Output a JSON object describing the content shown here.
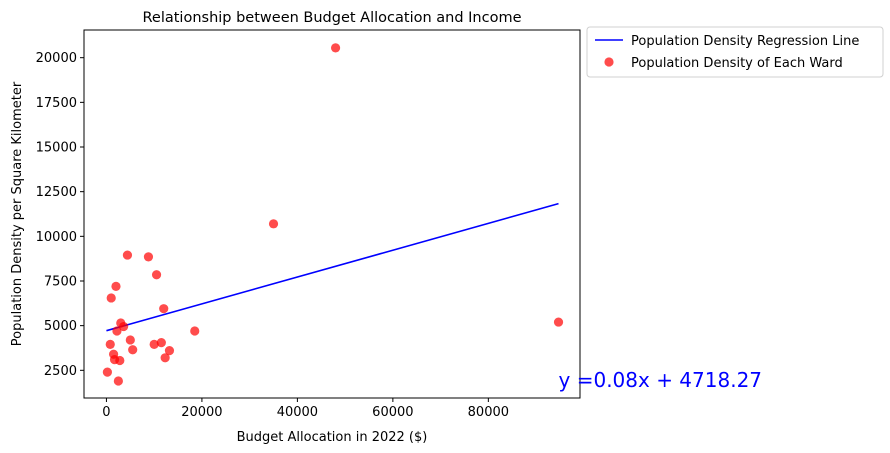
{
  "chart_data": {
    "type": "scatter",
    "title": "Relationship between Budget Allocation and Income",
    "xlabel": "Budget Allocation in 2022 ($)",
    "ylabel": "Population Density per Square Kilometer",
    "xlim": [
      -4700,
      99200
    ],
    "ylim": [
      950,
      21550
    ],
    "xticks": [
      0,
      20000,
      40000,
      60000,
      80000
    ],
    "yticks": [
      2500,
      5000,
      7500,
      10000,
      12500,
      15000,
      17500,
      20000
    ],
    "grid": false,
    "legend_position": "outside-upper-right",
    "colors": {
      "regression": "#0000ff",
      "points": "#ff0000",
      "equation": "#0000ff"
    },
    "series": [
      {
        "name": "Population Density Regression Line",
        "kind": "line",
        "x": [
          0,
          94700
        ],
        "y": [
          4718.27,
          11830
        ]
      },
      {
        "name": "Population Density of Each Ward",
        "kind": "scatter",
        "x": [
          200,
          800,
          1000,
          1500,
          1700,
          2000,
          2200,
          2500,
          2800,
          3000,
          3600,
          4400,
          5000,
          5500,
          8800,
          10000,
          10500,
          11500,
          12000,
          12300,
          13200,
          18500,
          35000,
          48000,
          94700
        ],
        "y": [
          2400,
          3950,
          6550,
          3400,
          3100,
          7200,
          4700,
          1900,
          3050,
          5150,
          4950,
          8950,
          4200,
          3650,
          8850,
          3950,
          7850,
          4050,
          5950,
          3200,
          3600,
          4700,
          10700,
          20550,
          5200
        ]
      }
    ],
    "annotation": {
      "text": "y =0.08x + 4718.27",
      "x": 94700,
      "y": 1950
    }
  }
}
